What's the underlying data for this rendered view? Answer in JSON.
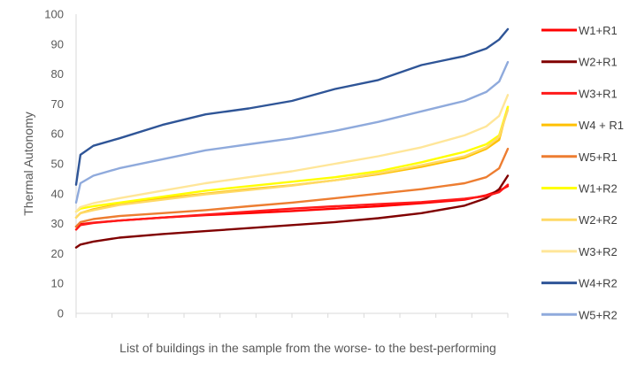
{
  "chart_data": {
    "type": "line",
    "title": "",
    "xlabel": "List of buildings in the sample from the worse- to  the best-performing",
    "ylabel": "Thermal Autonomy",
    "ylim": [
      0,
      100
    ],
    "yticks": [
      "0",
      "10",
      "20",
      "30",
      "40",
      "50",
      "60",
      "70",
      "80",
      "90",
      "100"
    ],
    "grid": false,
    "legend_position": "right",
    "x": [
      0,
      0.01,
      0.04,
      0.1,
      0.2,
      0.3,
      0.4,
      0.5,
      0.6,
      0.7,
      0.8,
      0.9,
      0.95,
      0.98,
      1
    ],
    "series": [
      {
        "name": "W1+R1",
        "color": "#ff0000",
        "values": [
          29,
          29.8,
          30.3,
          31,
          32,
          32.8,
          33.5,
          34.2,
          35,
          35.8,
          36.8,
          38,
          39.5,
          41,
          42.5
        ]
      },
      {
        "name": "W2+R1",
        "color": "#800000",
        "values": [
          22,
          23,
          24,
          25.3,
          26.5,
          27.5,
          28.5,
          29.5,
          30.5,
          31.8,
          33.5,
          36,
          38.5,
          41.5,
          46
        ]
      },
      {
        "name": "W3+R1",
        "color": "#ff1a1a",
        "values": [
          28,
          29.5,
          30.2,
          31,
          32,
          33,
          34,
          35,
          35.8,
          36.5,
          37.2,
          38.3,
          39.2,
          40.5,
          43
        ]
      },
      {
        "name": "W4 + R1",
        "color": "#ffc000",
        "values": [
          32,
          33.5,
          34.8,
          36.5,
          38.5,
          40,
          41.5,
          42.8,
          44.5,
          46.5,
          49,
          52,
          55,
          58,
          69
        ]
      },
      {
        "name": "W5+R1",
        "color": "#ed7d31",
        "values": [
          29,
          30.5,
          31.5,
          32.5,
          33.5,
          34.5,
          35.8,
          37,
          38.5,
          40,
          41.5,
          43.5,
          45.5,
          48.5,
          55
        ]
      },
      {
        "name": "W1+R2",
        "color": "#ffff00",
        "values": [
          34,
          35,
          35.8,
          37,
          39,
          41,
          42.5,
          44,
          45.5,
          47.5,
          50.5,
          54,
          56.5,
          59.5,
          69
        ]
      },
      {
        "name": "W2+R2",
        "color": "#ffd966",
        "values": [
          32,
          33.5,
          34.5,
          36.2,
          38,
          39.8,
          41.2,
          42.7,
          44.5,
          46.8,
          49.5,
          52.5,
          55.5,
          59,
          68
        ]
      },
      {
        "name": "W3+R2",
        "color": "#ffe699",
        "values": [
          34,
          35.5,
          36.8,
          38.5,
          41,
          43.5,
          45.5,
          47.5,
          50,
          52.5,
          55.5,
          59.5,
          62.5,
          66,
          73
        ]
      },
      {
        "name": "W4+R2",
        "color": "#2f5597",
        "values": [
          43,
          53,
          56,
          58.5,
          63,
          66.5,
          68.5,
          71,
          75,
          78,
          83,
          86,
          88.5,
          91.5,
          95
        ]
      },
      {
        "name": "W5+R2",
        "color": "#8faadc",
        "values": [
          37,
          43.5,
          46,
          48.5,
          51.5,
          54.5,
          56.5,
          58.5,
          61,
          64,
          67.5,
          71,
          74,
          77.5,
          84
        ]
      }
    ]
  }
}
